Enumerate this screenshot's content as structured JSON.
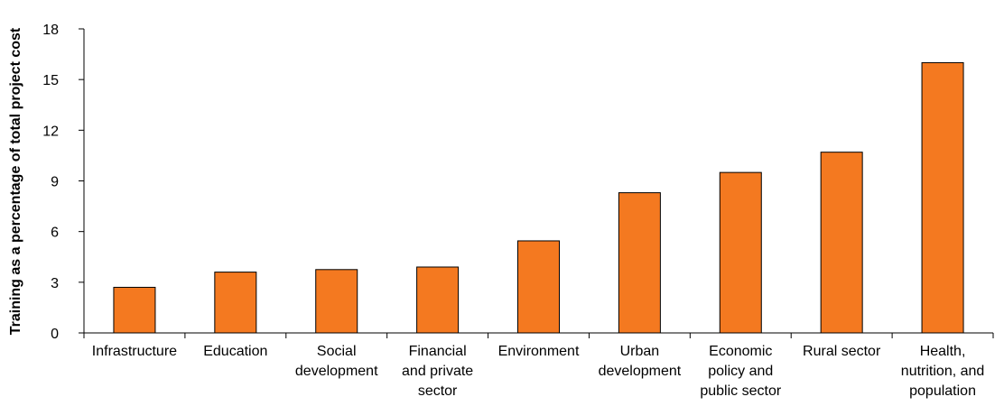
{
  "chart_data": {
    "type": "bar",
    "ylabel": "Training as a percentage of total project cost",
    "xlabel": "",
    "ylim": [
      0,
      18
    ],
    "yticks": [
      0,
      3,
      6,
      9,
      12,
      15,
      18
    ],
    "grid": false,
    "bar_color": "#F47920",
    "categories": [
      [
        "Infrastructure"
      ],
      [
        "Education"
      ],
      [
        "Social",
        "development"
      ],
      [
        "Financial",
        "and private",
        "sector"
      ],
      [
        "Environment"
      ],
      [
        "Urban",
        "development"
      ],
      [
        "Economic",
        "policy and",
        "public sector"
      ],
      [
        "Rural sector"
      ],
      [
        "Health,",
        "nutrition, and",
        "population"
      ]
    ],
    "values": [
      2.7,
      3.6,
      3.75,
      3.9,
      5.45,
      8.3,
      9.5,
      10.7,
      16.0
    ]
  }
}
